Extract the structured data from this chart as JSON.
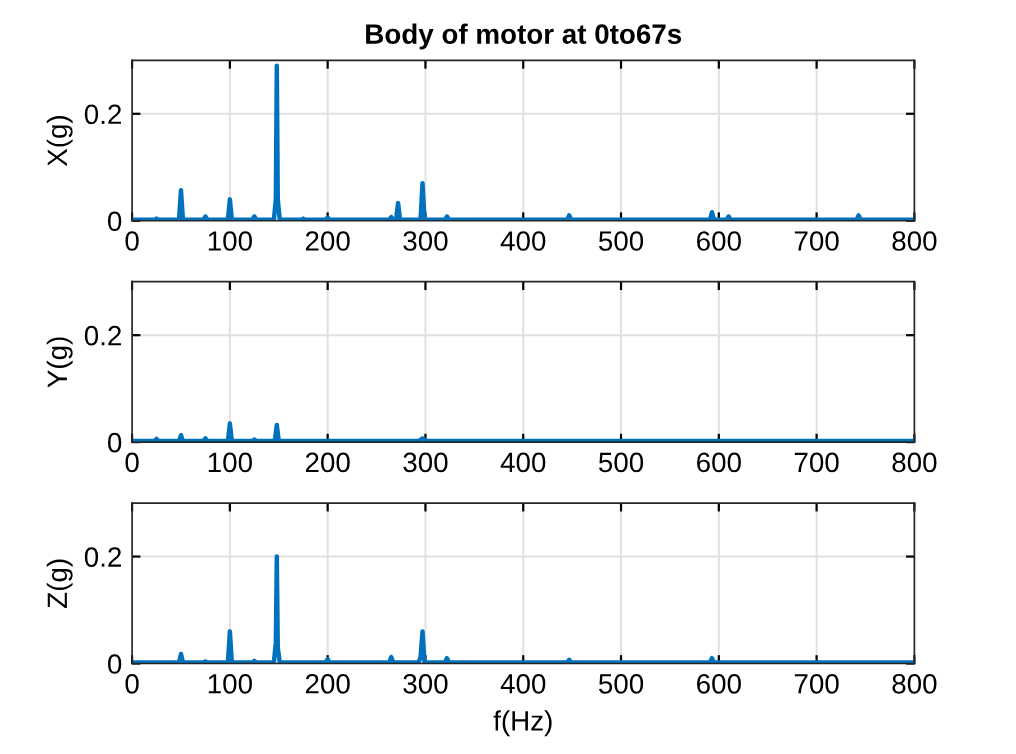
{
  "chart_data": [
    {
      "type": "line",
      "title": "Body of motor at 0to67s",
      "ylabel": "X(g)",
      "xlim": [
        0,
        800
      ],
      "ylim": [
        0,
        0.3
      ],
      "xticks": [
        0,
        100,
        200,
        300,
        400,
        500,
        600,
        700,
        800
      ],
      "yticks": [
        0,
        0.2
      ],
      "grid": true,
      "series": [
        {
          "color": "#0072bd",
          "x": [
            0,
            23,
            25,
            27,
            48,
            50,
            52,
            73,
            75,
            77,
            98,
            100,
            102,
            123,
            125,
            127,
            145,
            147,
            148,
            149,
            151,
            173,
            175,
            177,
            198,
            200,
            202,
            263,
            265,
            267,
            270,
            272,
            274,
            295,
            297,
            299,
            320,
            322,
            324,
            445,
            447,
            449,
            591,
            593,
            595,
            608,
            610,
            612,
            741,
            743,
            745,
            800
          ],
          "values": [
            0.002,
            0.002,
            0.004,
            0.002,
            0.002,
            0.057,
            0.002,
            0.002,
            0.008,
            0.002,
            0.002,
            0.04,
            0.002,
            0.002,
            0.008,
            0.002,
            0.002,
            0.04,
            0.29,
            0.04,
            0.002,
            0.002,
            0.004,
            0.002,
            0.002,
            0.006,
            0.002,
            0.002,
            0.007,
            0.002,
            0.002,
            0.033,
            0.002,
            0.002,
            0.07,
            0.002,
            0.002,
            0.008,
            0.002,
            0.002,
            0.01,
            0.002,
            0.002,
            0.016,
            0.002,
            0.002,
            0.008,
            0.002,
            0.002,
            0.01,
            0.002,
            0.002
          ]
        }
      ]
    },
    {
      "type": "line",
      "ylabel": "Y(g)",
      "xlim": [
        0,
        800
      ],
      "ylim": [
        0,
        0.3
      ],
      "xticks": [
        0,
        100,
        200,
        300,
        400,
        500,
        600,
        700,
        800
      ],
      "yticks": [
        0,
        0.2
      ],
      "grid": true,
      "series": [
        {
          "color": "#0072bd",
          "x": [
            0,
            23,
            25,
            27,
            48,
            50,
            52,
            73,
            75,
            77,
            98,
            100,
            102,
            123,
            125,
            127,
            146,
            148,
            150,
            293,
            297,
            301,
            800
          ],
          "values": [
            0.002,
            0.002,
            0.006,
            0.002,
            0.002,
            0.013,
            0.002,
            0.002,
            0.007,
            0.002,
            0.002,
            0.035,
            0.002,
            0.002,
            0.005,
            0.002,
            0.002,
            0.032,
            0.002,
            0.002,
            0.007,
            0.002,
            0.002
          ]
        }
      ]
    },
    {
      "type": "line",
      "ylabel": "Z(g)",
      "xlabel": "f(Hz)",
      "xlim": [
        0,
        800
      ],
      "ylim": [
        0,
        0.3
      ],
      "xticks": [
        0,
        100,
        200,
        300,
        400,
        500,
        600,
        700,
        800
      ],
      "yticks": [
        0,
        0.2
      ],
      "grid": true,
      "series": [
        {
          "color": "#0072bd",
          "x": [
            0,
            48,
            50,
            52,
            73,
            75,
            77,
            98,
            100,
            102,
            123,
            125,
            127,
            145,
            147,
            148,
            149,
            151,
            198,
            200,
            202,
            263,
            265,
            267,
            293,
            295,
            297,
            299,
            320,
            322,
            324,
            445,
            447,
            449,
            591,
            593,
            595,
            800
          ],
          "values": [
            0.002,
            0.002,
            0.018,
            0.002,
            0.002,
            0.004,
            0.002,
            0.002,
            0.06,
            0.002,
            0.002,
            0.005,
            0.002,
            0.002,
            0.04,
            0.2,
            0.03,
            0.002,
            0.002,
            0.008,
            0.002,
            0.002,
            0.012,
            0.002,
            0.002,
            0.012,
            0.06,
            0.002,
            0.002,
            0.01,
            0.002,
            0.002,
            0.007,
            0.002,
            0.002,
            0.01,
            0.002,
            0.002
          ]
        }
      ]
    }
  ]
}
